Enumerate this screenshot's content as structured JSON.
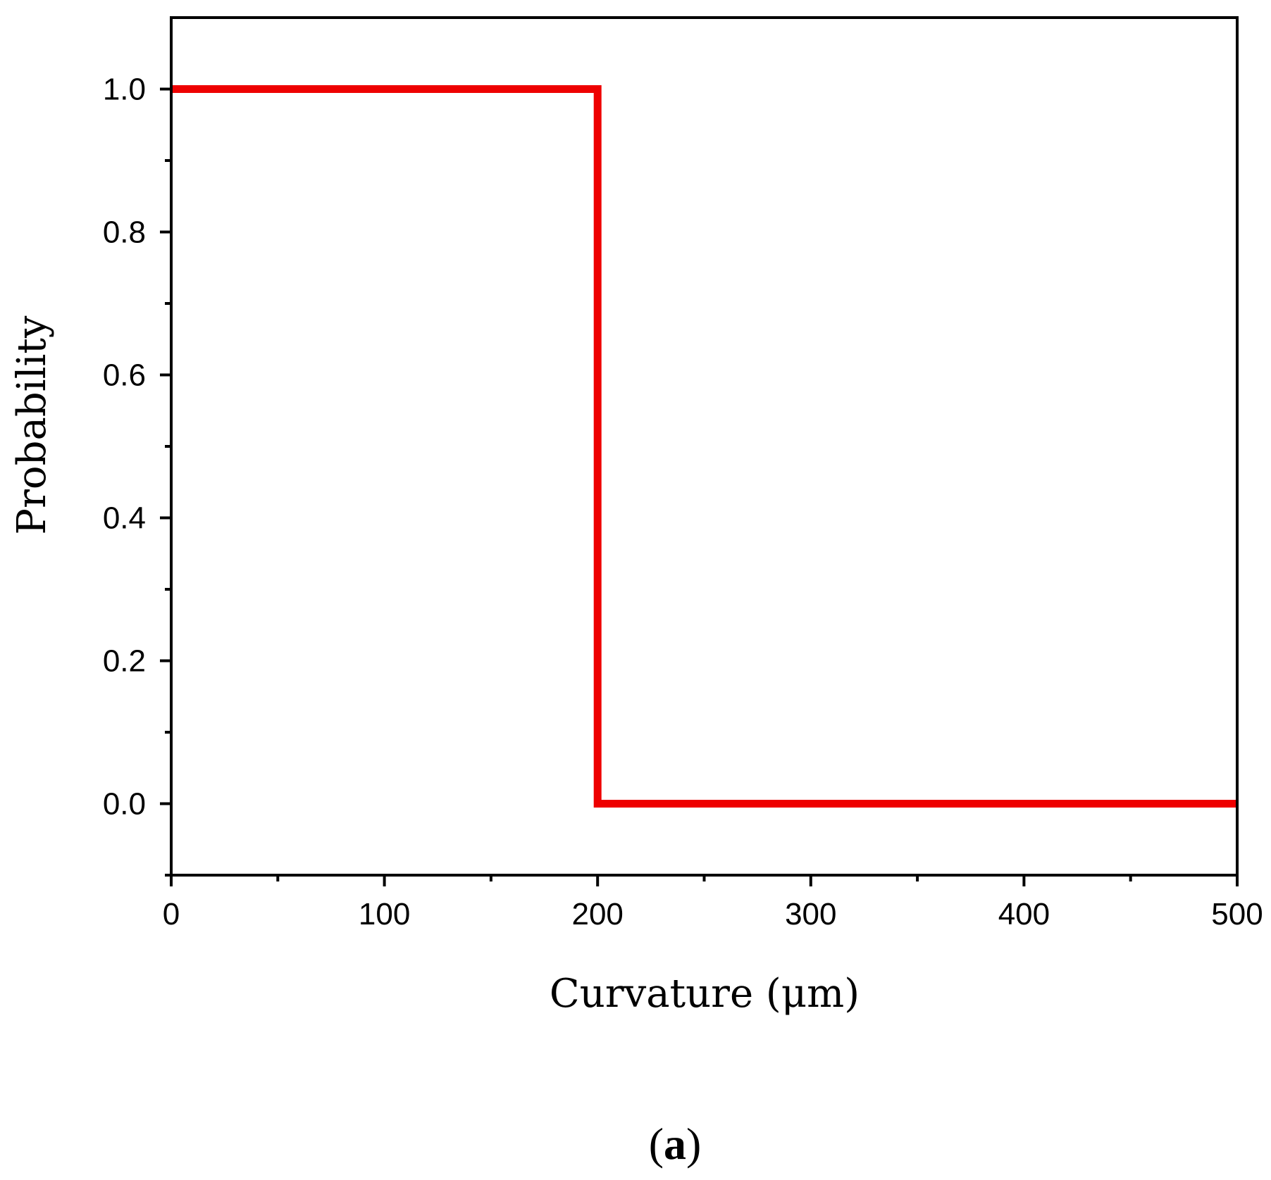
{
  "chart_data": {
    "type": "line",
    "title": "",
    "xlabel": "Curvature (μm)",
    "ylabel": "Probability",
    "xlim": [
      0,
      500
    ],
    "ylim": [
      -0.1,
      1.1
    ],
    "x_ticks": [
      0,
      100,
      200,
      300,
      400,
      500
    ],
    "x_tick_labels": [
      "0",
      "100",
      "200",
      "300",
      "400",
      "500"
    ],
    "x_minor_ticks": [
      50,
      150,
      250,
      350,
      450
    ],
    "y_ticks": [
      0.0,
      0.2,
      0.4,
      0.6,
      0.8,
      1.0
    ],
    "y_tick_labels": [
      "0.0",
      "0.2",
      "0.4",
      "0.6",
      "0.8",
      "1.0"
    ],
    "y_minor_ticks": [
      -0.1,
      0.1,
      0.3,
      0.5,
      0.7,
      0.9
    ],
    "grid": false,
    "legend": "none",
    "series": [
      {
        "color": "#ee0000",
        "x": [
          0,
          200,
          200,
          500
        ],
        "y": [
          1.0,
          1.0,
          0.0,
          0.0
        ]
      }
    ]
  },
  "panel_label": {
    "open": "(",
    "letter": "a",
    "close": ")"
  }
}
